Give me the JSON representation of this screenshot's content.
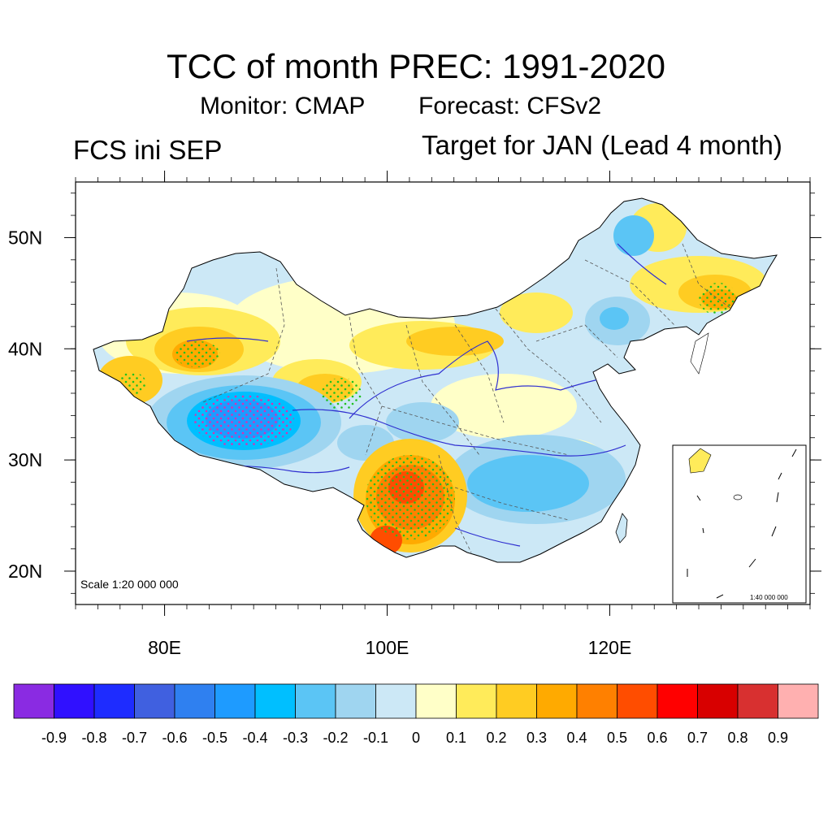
{
  "title": "TCC of month PREC: 1991-2020",
  "subtitle_monitor": "Monitor: CMAP",
  "subtitle_forecast": "Forecast: CFSv2",
  "left_label": "FCS ini SEP",
  "right_label": "Target for JAN (Lead 4 month)",
  "map": {
    "lat_labels": [
      "50N",
      "40N",
      "30N",
      "20N"
    ],
    "lat_values": [
      50,
      40,
      30,
      20
    ],
    "lon_labels": [
      "80E",
      "100E",
      "120E"
    ],
    "lon_values": [
      80,
      100,
      120
    ],
    "lon_range": [
      72,
      138
    ],
    "lat_range": [
      17,
      55
    ],
    "scale_text": "Scale 1:20 000 000",
    "inset_scale_text": "1:40 000 000"
  },
  "colorbar": {
    "colors": [
      "#8a2be2",
      "#3010ff",
      "#1e2cff",
      "#4060e0",
      "#2f80f0",
      "#1e9bff",
      "#00bfff",
      "#5bc5f5",
      "#9fd5f0",
      "#cce8f6",
      "#ffffc8",
      "#ffeb5a",
      "#ffcc22",
      "#ffaa00",
      "#ff8000",
      "#ff4d00",
      "#ff0000",
      "#d80000",
      "#d83030",
      "#ffb0b0"
    ],
    "labels": [
      "-0.9",
      "-0.8",
      "-0.7",
      "-0.6",
      "-0.5",
      "-0.4",
      "-0.3",
      "-0.2",
      "-0.1",
      "0",
      "0.1",
      "0.2",
      "0.3",
      "0.4",
      "0.5",
      "0.6",
      "0.7",
      "0.8",
      "0.9"
    ]
  }
}
